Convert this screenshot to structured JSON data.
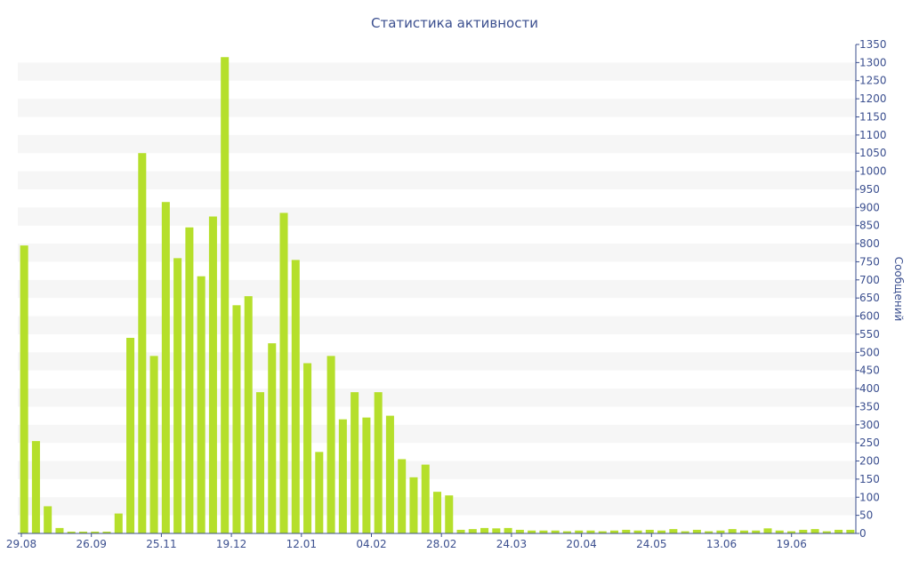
{
  "chart_data": {
    "type": "bar",
    "title": "Статистика активности",
    "xlabel": "",
    "ylabel": "Сообщений",
    "ylim": [
      0,
      1350
    ],
    "y_tick_step": 50,
    "x_tick_labels": [
      "29.08",
      "26.09",
      "25.11",
      "19.12",
      "12.01",
      "04.02",
      "28.02",
      "24.03",
      "20.04",
      "24.05",
      "13.06",
      "19.06"
    ],
    "values": [
      795,
      255,
      75,
      15,
      5,
      5,
      5,
      5,
      55,
      540,
      1050,
      490,
      915,
      760,
      845,
      710,
      875,
      1315,
      630,
      655,
      390,
      525,
      885,
      755,
      470,
      225,
      490,
      315,
      390,
      320,
      390,
      325,
      205,
      155,
      190,
      115,
      105,
      10,
      12,
      15,
      14,
      15,
      10,
      8,
      8,
      8,
      6,
      8,
      8,
      6,
      8,
      10,
      8,
      10,
      8,
      12,
      6,
      10,
      6,
      8,
      12,
      8,
      8,
      14,
      8,
      6,
      10,
      12,
      6,
      10,
      10
    ],
    "bar_color": "#b5df2b",
    "band_color": "#f6f6f6",
    "axis_color": "#3b4f8f",
    "grid": "alternating horizontal bands",
    "legend": "none"
  }
}
